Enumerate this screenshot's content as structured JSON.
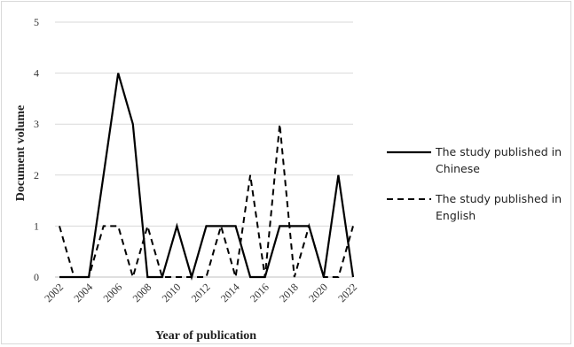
{
  "chart_data": {
    "type": "line",
    "xlabel": "Year of publication",
    "ylabel": "Document volume",
    "ylim": [
      0,
      5
    ],
    "y_ticks": [
      "0",
      "1",
      "2",
      "3",
      "4",
      "5"
    ],
    "x_tick_labels": [
      "2002",
      "2004",
      "2006",
      "2008",
      "2010",
      "2012",
      "2014",
      "2016",
      "2018",
      "2020",
      "2022"
    ],
    "x": [
      2002,
      2003,
      2004,
      2005,
      2006,
      2007,
      2008,
      2009,
      2010,
      2011,
      2012,
      2013,
      2014,
      2015,
      2016,
      2017,
      2018,
      2019,
      2020,
      2021,
      2022
    ],
    "grid": "horizontal",
    "legend_position": "right",
    "series": [
      {
        "name": "The study published in Chinese",
        "legend_lines": [
          "The study published in",
          "Chinese"
        ],
        "style": "solid",
        "color": "#000000",
        "values": [
          0,
          0,
          0,
          2,
          4,
          3,
          0,
          0,
          1,
          0,
          1,
          1,
          1,
          0,
          0,
          1,
          1,
          1,
          0,
          2,
          0
        ]
      },
      {
        "name": "The study published in English",
        "legend_lines": [
          "The study published in",
          "English"
        ],
        "style": "dashed",
        "color": "#000000",
        "values": [
          1,
          0,
          0,
          1,
          1,
          0,
          1,
          0,
          0,
          0,
          0,
          1,
          0,
          2,
          0,
          3,
          0,
          1,
          0,
          0,
          1
        ]
      }
    ]
  }
}
